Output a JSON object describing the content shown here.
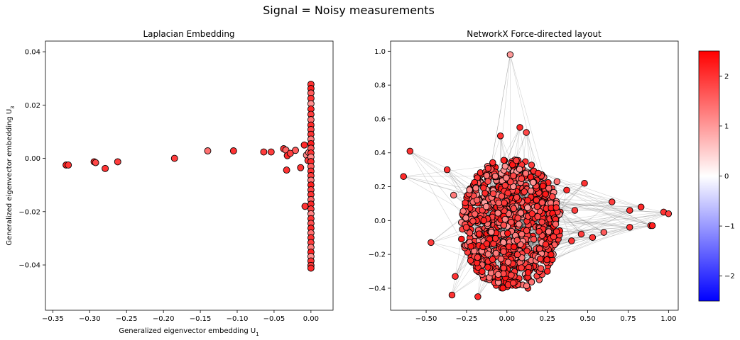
{
  "figure": {
    "title": "Signal = Noisy measurements"
  },
  "colors": {
    "low": "#0000ff",
    "mid": "#ffffff",
    "high": "#ff0000",
    "edge": "#000000"
  },
  "chart_data": [
    {
      "type": "scatter",
      "title": "Laplacian Embedding",
      "xlabel": "Generalized eigenvector embedding U",
      "xlabel_sub": "1",
      "ylabel": "Generalized eigenvector embedding U",
      "ylabel_sub": "3",
      "xlim": [
        -0.36,
        0.03
      ],
      "ylim": [
        -0.057,
        0.044
      ],
      "xticks": [
        -0.35,
        -0.3,
        -0.25,
        -0.2,
        -0.15,
        -0.1,
        -0.05,
        0.0
      ],
      "xtick_labels": [
        "−0.35",
        "−0.30",
        "−0.25",
        "−0.20",
        "−0.15",
        "−0.10",
        "−0.05",
        "0.00"
      ],
      "yticks": [
        -0.04,
        -0.02,
        0.0,
        0.02,
        0.04
      ],
      "ytick_labels": [
        "−0.04",
        "−0.02",
        "0.00",
        "0.02",
        "0.04"
      ],
      "points": [
        [
          -0.332,
          -0.0025,
          2.2
        ],
        [
          -0.329,
          -0.0025,
          2.0
        ],
        [
          -0.294,
          -0.0013,
          2.1
        ],
        [
          -0.292,
          -0.0016,
          1.8
        ],
        [
          -0.279,
          -0.0038,
          2.0
        ],
        [
          -0.262,
          -0.0013,
          1.9
        ],
        [
          -0.185,
          0.0,
          1.9
        ],
        [
          -0.14,
          0.0028,
          1.4
        ],
        [
          -0.105,
          0.0028,
          2.0
        ],
        [
          -0.064,
          0.0024,
          1.9
        ],
        [
          -0.054,
          0.0024,
          1.9
        ],
        [
          -0.037,
          0.0036,
          2.0
        ],
        [
          -0.034,
          0.0031,
          1.5
        ],
        [
          -0.032,
          0.001,
          2.1
        ],
        [
          -0.033,
          -0.0044,
          2.0
        ],
        [
          -0.028,
          0.0019,
          1.9
        ],
        [
          -0.021,
          0.003,
          1.6
        ],
        [
          -0.014,
          -0.0035,
          2.0
        ],
        [
          -0.009,
          0.005,
          2.1
        ],
        [
          -0.008,
          -0.018,
          2.0
        ],
        [
          -0.006,
          0.0012,
          1.2
        ],
        [
          -0.004,
          -0.0008,
          1.9
        ],
        [
          -0.003,
          0.0022,
          1.3
        ],
        [
          0.0,
          0.0278,
          2.0
        ],
        [
          0.0,
          0.0262,
          2.2
        ],
        [
          0.0,
          0.0245,
          1.6
        ],
        [
          0.0,
          0.0225,
          2.0
        ],
        [
          0.0,
          0.0205,
          1.1
        ],
        [
          0.0,
          0.0185,
          2.1
        ],
        [
          0.0,
          0.0165,
          1.9
        ],
        [
          0.0,
          0.0145,
          1.4
        ],
        [
          0.0,
          0.0125,
          2.1
        ],
        [
          0.0,
          0.0108,
          1.8
        ],
        [
          0.0,
          0.009,
          2.0
        ],
        [
          0.0,
          0.0072,
          1.3
        ],
        [
          0.0,
          0.0055,
          2.2
        ],
        [
          0.0,
          0.0038,
          1.7
        ],
        [
          0.0,
          0.002,
          2.0
        ],
        [
          0.0,
          0.0005,
          1.2
        ],
        [
          0.0,
          -0.0012,
          2.1
        ],
        [
          0.0,
          -0.003,
          1.6
        ],
        [
          0.0,
          -0.0048,
          2.0
        ],
        [
          0.0,
          -0.0065,
          1.9
        ],
        [
          0.0,
          -0.0082,
          1.3
        ],
        [
          0.0,
          -0.01,
          2.2
        ],
        [
          0.0,
          -0.0118,
          1.8
        ],
        [
          0.0,
          -0.0136,
          2.0
        ],
        [
          0.0,
          -0.0155,
          1.5
        ],
        [
          0.0,
          -0.0172,
          2.1
        ],
        [
          0.0,
          -0.019,
          1.9
        ],
        [
          0.0,
          -0.0208,
          1.2
        ],
        [
          0.0,
          -0.0226,
          2.0
        ],
        [
          0.0,
          -0.0244,
          1.7
        ],
        [
          0.0,
          -0.0262,
          2.1
        ],
        [
          0.0,
          -0.028,
          1.4
        ],
        [
          0.0,
          -0.0298,
          2.0
        ],
        [
          0.0,
          -0.0316,
          1.9
        ],
        [
          0.0,
          -0.0334,
          1.3
        ],
        [
          0.0,
          -0.0352,
          2.2
        ],
        [
          0.0,
          -0.0368,
          1.1
        ],
        [
          0.0,
          -0.0385,
          2.0
        ],
        [
          0.0,
          -0.0402,
          1.9
        ],
        [
          0.0,
          -0.0412,
          2.1
        ]
      ]
    },
    {
      "type": "network",
      "title": "NetworkX Force-directed layout",
      "xlim": [
        -0.72,
        1.06
      ],
      "ylim": [
        -0.53,
        1.06
      ],
      "xticks": [
        -0.5,
        -0.25,
        0.0,
        0.25,
        0.5,
        0.75,
        1.0
      ],
      "xtick_labels": [
        "−0.50",
        "−0.25",
        "0.00",
        "0.25",
        "0.50",
        "0.75",
        "1.00"
      ],
      "yticks": [
        -0.4,
        -0.2,
        0.0,
        0.2,
        0.4,
        0.6,
        0.8,
        1.0
      ],
      "ytick_labels": [
        "−0.4",
        "−0.2",
        "0.0",
        "0.2",
        "0.4",
        "0.6",
        "0.8",
        "1.0"
      ],
      "nodes": [
        [
          0.02,
          0.98,
          1.0
        ],
        [
          -0.6,
          0.41,
          2.0
        ],
        [
          -0.64,
          0.26,
          2.1
        ],
        [
          -0.37,
          0.3,
          2.0
        ],
        [
          -0.47,
          -0.13,
          1.9
        ],
        [
          -0.34,
          -0.44,
          2.0
        ],
        [
          -0.18,
          -0.45,
          2.1
        ],
        [
          0.13,
          -0.4,
          2.0
        ],
        [
          0.08,
          0.55,
          2.1
        ],
        [
          0.12,
          0.52,
          1.8
        ],
        [
          -0.04,
          0.5,
          2.0
        ],
        [
          0.48,
          0.22,
          2.0
        ],
        [
          0.65,
          0.11,
          1.9
        ],
        [
          0.76,
          0.06,
          2.0
        ],
        [
          0.83,
          0.08,
          2.1
        ],
        [
          0.97,
          0.05,
          2.0
        ],
        [
          1.0,
          0.04,
          1.9
        ],
        [
          0.89,
          -0.03,
          2.0
        ],
        [
          0.9,
          -0.03,
          2.2
        ],
        [
          0.76,
          -0.04,
          2.0
        ],
        [
          0.6,
          -0.07,
          1.6
        ],
        [
          0.53,
          -0.1,
          2.0
        ],
        [
          0.46,
          -0.08,
          1.9
        ],
        [
          0.37,
          0.18,
          2.1
        ],
        [
          0.42,
          0.06,
          1.9
        ],
        [
          0.4,
          -0.12,
          2.0
        ],
        [
          0.31,
          0.23,
          1.4
        ],
        [
          0.25,
          -0.3,
          2.1
        ],
        [
          0.33,
          0.05,
          2.0
        ],
        [
          -0.33,
          0.15,
          1.3
        ],
        [
          -0.32,
          -0.33,
          2.0
        ],
        [
          0.2,
          -0.35,
          1.5
        ]
      ],
      "cluster_seed": 1337,
      "cluster_size": 900,
      "cluster_center": [
        0.02,
        -0.02
      ],
      "cluster_spread": [
        0.27,
        0.31
      ],
      "edge_count": 900
    },
    {
      "type": "colorbar",
      "ticks": [
        -2,
        -1,
        0,
        1,
        2
      ],
      "tick_labels": [
        "−2",
        "−1",
        "0",
        "1",
        "2"
      ],
      "range": [
        -2.5,
        2.5
      ]
    }
  ]
}
